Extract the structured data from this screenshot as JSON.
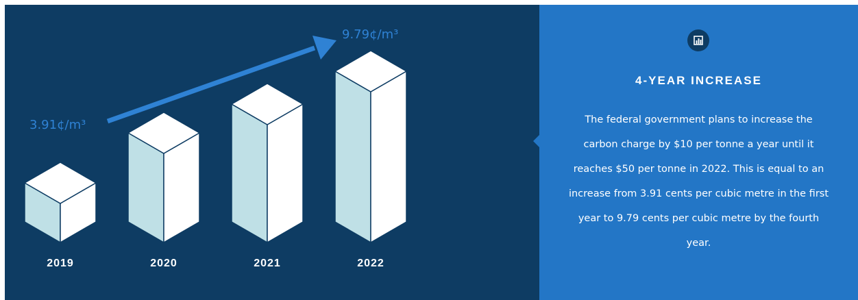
{
  "chart_data": {
    "type": "bar",
    "categories": [
      "2019",
      "2020",
      "2021",
      "2022"
    ],
    "values": [
      3.91,
      null,
      null,
      9.79
    ],
    "annotations": [
      {
        "category": "2019",
        "label": "3.91¢/m³"
      },
      {
        "category": "2022",
        "label": "9.79¢/m³"
      }
    ],
    "title": "",
    "xlabel": "",
    "ylabel": "",
    "grid": false,
    "legend": "none"
  },
  "info": {
    "heading": "4-YEAR INCREASE",
    "body": "The federal government plans to increase the carbon charge by $10 per tonne a year until it reaches $50 per tonne in 2022. This is equal to an increase from 3.91 cents per cubic metre in the first year to 9.79 cents per cubic metre by the fourth year.",
    "icon": "bar-chart-icon"
  },
  "colors": {
    "chart_background": "#0e3c63",
    "info_background": "#2376c6",
    "accent_blue": "#2f82d4",
    "box_left_face": "#bfe0e6",
    "box_top_face": "#ffffff",
    "box_edge": "#0e3c63",
    "text_white": "#ffffff"
  }
}
